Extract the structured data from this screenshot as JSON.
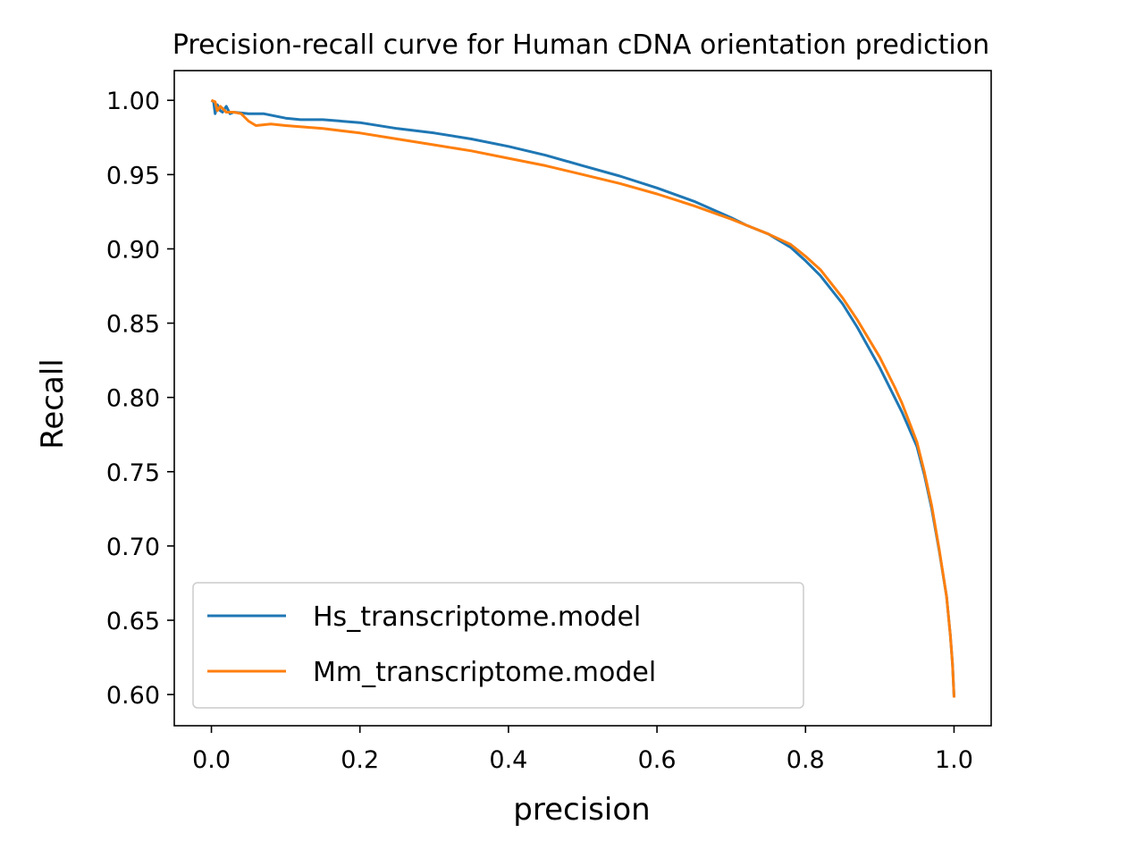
{
  "chart_data": {
    "type": "line",
    "title": "Precision-recall curve for Human cDNA orientation prediction",
    "xlabel": "precision",
    "ylabel": "Recall",
    "xlim": [
      -0.05,
      1.05
    ],
    "ylim": [
      0.579,
      1.02
    ],
    "xticks": [
      0.0,
      0.2,
      0.4,
      0.6,
      0.8,
      1.0
    ],
    "xtick_labels": [
      "0.0",
      "0.2",
      "0.4",
      "0.6",
      "0.8",
      "1.0"
    ],
    "yticks": [
      0.6,
      0.65,
      0.7,
      0.75,
      0.8,
      0.85,
      0.9,
      0.95,
      1.0
    ],
    "ytick_labels": [
      "0.60",
      "0.65",
      "0.70",
      "0.75",
      "0.80",
      "0.85",
      "0.90",
      "0.95",
      "1.00"
    ],
    "grid": false,
    "legend_position": "lower-left",
    "series": [
      {
        "name": "Hs_transcriptome.model",
        "color": "#1f77b4",
        "points": [
          [
            0.0,
            1.0
          ],
          [
            0.003,
            0.999
          ],
          [
            0.005,
            0.991
          ],
          [
            0.008,
            0.997
          ],
          [
            0.012,
            0.993
          ],
          [
            0.015,
            0.992
          ],
          [
            0.02,
            0.996
          ],
          [
            0.025,
            0.991
          ],
          [
            0.03,
            0.992
          ],
          [
            0.05,
            0.991
          ],
          [
            0.07,
            0.991
          ],
          [
            0.1,
            0.988
          ],
          [
            0.12,
            0.987
          ],
          [
            0.15,
            0.987
          ],
          [
            0.2,
            0.985
          ],
          [
            0.25,
            0.981
          ],
          [
            0.3,
            0.978
          ],
          [
            0.35,
            0.974
          ],
          [
            0.4,
            0.969
          ],
          [
            0.45,
            0.963
          ],
          [
            0.5,
            0.956
          ],
          [
            0.55,
            0.949
          ],
          [
            0.6,
            0.941
          ],
          [
            0.65,
            0.932
          ],
          [
            0.7,
            0.921
          ],
          [
            0.72,
            0.916
          ],
          [
            0.75,
            0.91
          ],
          [
            0.78,
            0.901
          ],
          [
            0.8,
            0.892
          ],
          [
            0.82,
            0.882
          ],
          [
            0.85,
            0.863
          ],
          [
            0.87,
            0.847
          ],
          [
            0.9,
            0.82
          ],
          [
            0.92,
            0.8
          ],
          [
            0.93,
            0.79
          ],
          [
            0.95,
            0.767
          ],
          [
            0.96,
            0.748
          ],
          [
            0.97,
            0.725
          ],
          [
            0.98,
            0.697
          ],
          [
            0.99,
            0.666
          ],
          [
            0.995,
            0.64
          ],
          [
            0.998,
            0.62
          ],
          [
            1.0,
            0.598
          ]
        ]
      },
      {
        "name": "Mm_transcriptome.model",
        "color": "#ff7f0e",
        "points": [
          [
            0.0,
            1.0
          ],
          [
            0.005,
            0.999
          ],
          [
            0.008,
            0.993
          ],
          [
            0.012,
            0.996
          ],
          [
            0.02,
            0.992
          ],
          [
            0.03,
            0.992
          ],
          [
            0.04,
            0.991
          ],
          [
            0.05,
            0.986
          ],
          [
            0.06,
            0.983
          ],
          [
            0.08,
            0.984
          ],
          [
            0.1,
            0.983
          ],
          [
            0.15,
            0.981
          ],
          [
            0.2,
            0.978
          ],
          [
            0.25,
            0.974
          ],
          [
            0.3,
            0.97
          ],
          [
            0.35,
            0.966
          ],
          [
            0.4,
            0.961
          ],
          [
            0.45,
            0.956
          ],
          [
            0.5,
            0.95
          ],
          [
            0.55,
            0.944
          ],
          [
            0.6,
            0.937
          ],
          [
            0.65,
            0.929
          ],
          [
            0.7,
            0.92
          ],
          [
            0.75,
            0.91
          ],
          [
            0.78,
            0.903
          ],
          [
            0.8,
            0.895
          ],
          [
            0.82,
            0.886
          ],
          [
            0.85,
            0.867
          ],
          [
            0.87,
            0.852
          ],
          [
            0.9,
            0.827
          ],
          [
            0.92,
            0.807
          ],
          [
            0.93,
            0.796
          ],
          [
            0.95,
            0.77
          ],
          [
            0.96,
            0.75
          ],
          [
            0.97,
            0.727
          ],
          [
            0.98,
            0.698
          ],
          [
            0.99,
            0.666
          ],
          [
            0.995,
            0.64
          ],
          [
            0.998,
            0.62
          ],
          [
            1.0,
            0.598
          ]
        ]
      }
    ]
  }
}
